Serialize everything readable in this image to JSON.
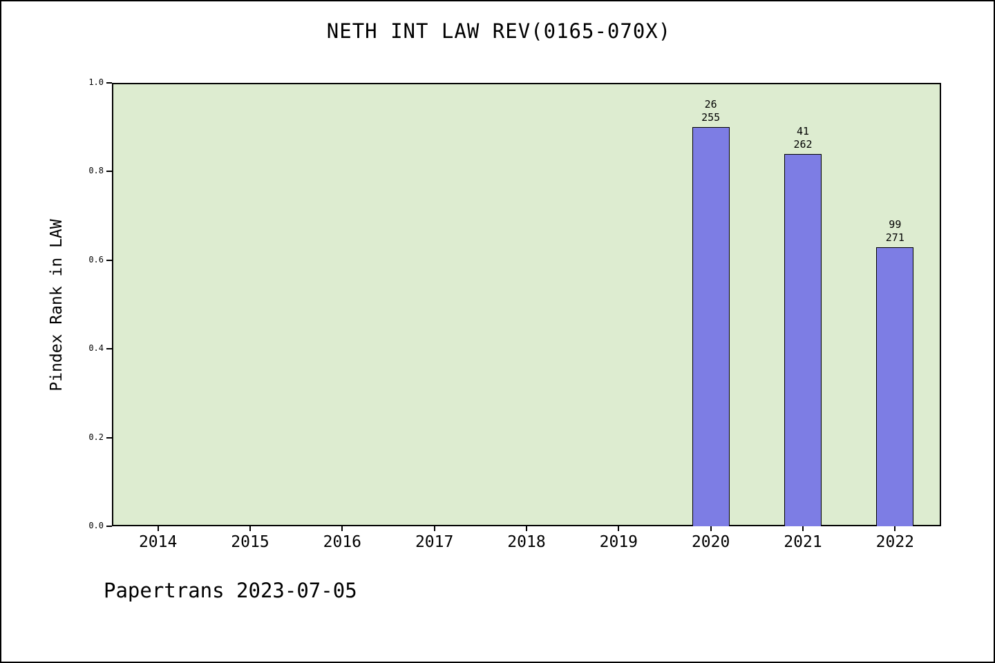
{
  "chart_data": {
    "type": "bar",
    "title": "NETH INT LAW REV(0165-070X)",
    "ylabel": "Pindex Rank in LAW",
    "xlabel": "",
    "categories": [
      "2014",
      "2015",
      "2016",
      "2017",
      "2018",
      "2019",
      "2020",
      "2021",
      "2022"
    ],
    "ytick_labels": [
      "0.0",
      "0.2",
      "0.4",
      "0.6",
      "0.8",
      "1.0"
    ],
    "ylim": [
      0.0,
      1.0
    ],
    "grid": false,
    "legend": false,
    "bars": [
      {
        "category": "2020",
        "value": 0.9,
        "rank": "26",
        "total": "255"
      },
      {
        "category": "2021",
        "value": 0.84,
        "rank": "41",
        "total": "262"
      },
      {
        "category": "2022",
        "value": 0.63,
        "rank": "99",
        "total": "271"
      }
    ],
    "colors": {
      "bar": "#7d7de4",
      "plot_bg": "#ddecd0",
      "axis": "#000000",
      "page_bg": "#ffffff"
    }
  },
  "footer": {
    "text": "Papertrans 2023-07-05"
  }
}
